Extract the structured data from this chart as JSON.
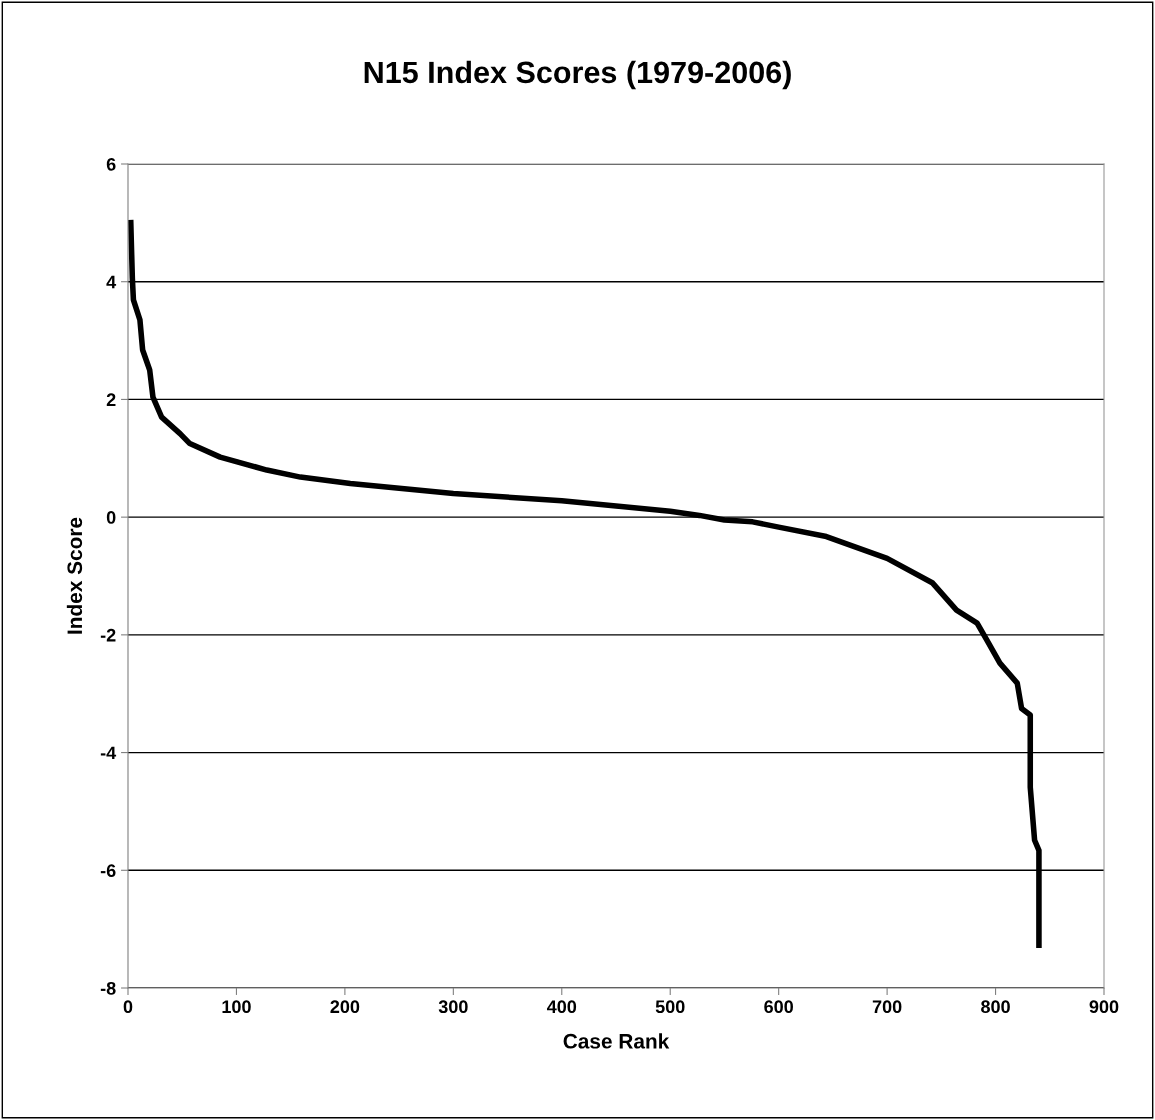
{
  "chart_data": {
    "type": "line",
    "title": "N15 Index Scores (1979-2006)",
    "xlabel": "Case Rank",
    "ylabel": "Index Score",
    "x": [
      2.5,
      4,
      5,
      11,
      13.5,
      20,
      23,
      31,
      48,
      57,
      85,
      128,
      159,
      205,
      300,
      400,
      500,
      527,
      550,
      576,
      600,
      644,
      700,
      742,
      764,
      783,
      792,
      804,
      820,
      824,
      832,
      832,
      836,
      840,
      840
    ],
    "series": [
      {
        "color": "#000000",
        "values": [
          5.05,
          4.06,
          3.69,
          3.35,
          2.84,
          2.5,
          2.04,
          1.7,
          1.42,
          1.25,
          1.02,
          0.8,
          0.68,
          0.57,
          0.4,
          0.28,
          0.1,
          0.03,
          -0.05,
          -0.08,
          -0.17,
          -0.33,
          -0.7,
          -1.12,
          -1.58,
          -1.8,
          -2.09,
          -2.48,
          -2.82,
          -3.25,
          -3.36,
          -4.59,
          -5.49,
          -5.66,
          -7.32
        ]
      }
    ],
    "xlim": [
      0,
      900
    ],
    "xticks": [
      0,
      100,
      200,
      300,
      400,
      500,
      600,
      700,
      800,
      900
    ],
    "ylim": [
      -8,
      6
    ],
    "yticks": [
      -8,
      -6,
      -4,
      -2,
      0,
      2,
      4,
      6
    ],
    "grid": "y",
    "marker": "none",
    "line_style": "solid"
  }
}
